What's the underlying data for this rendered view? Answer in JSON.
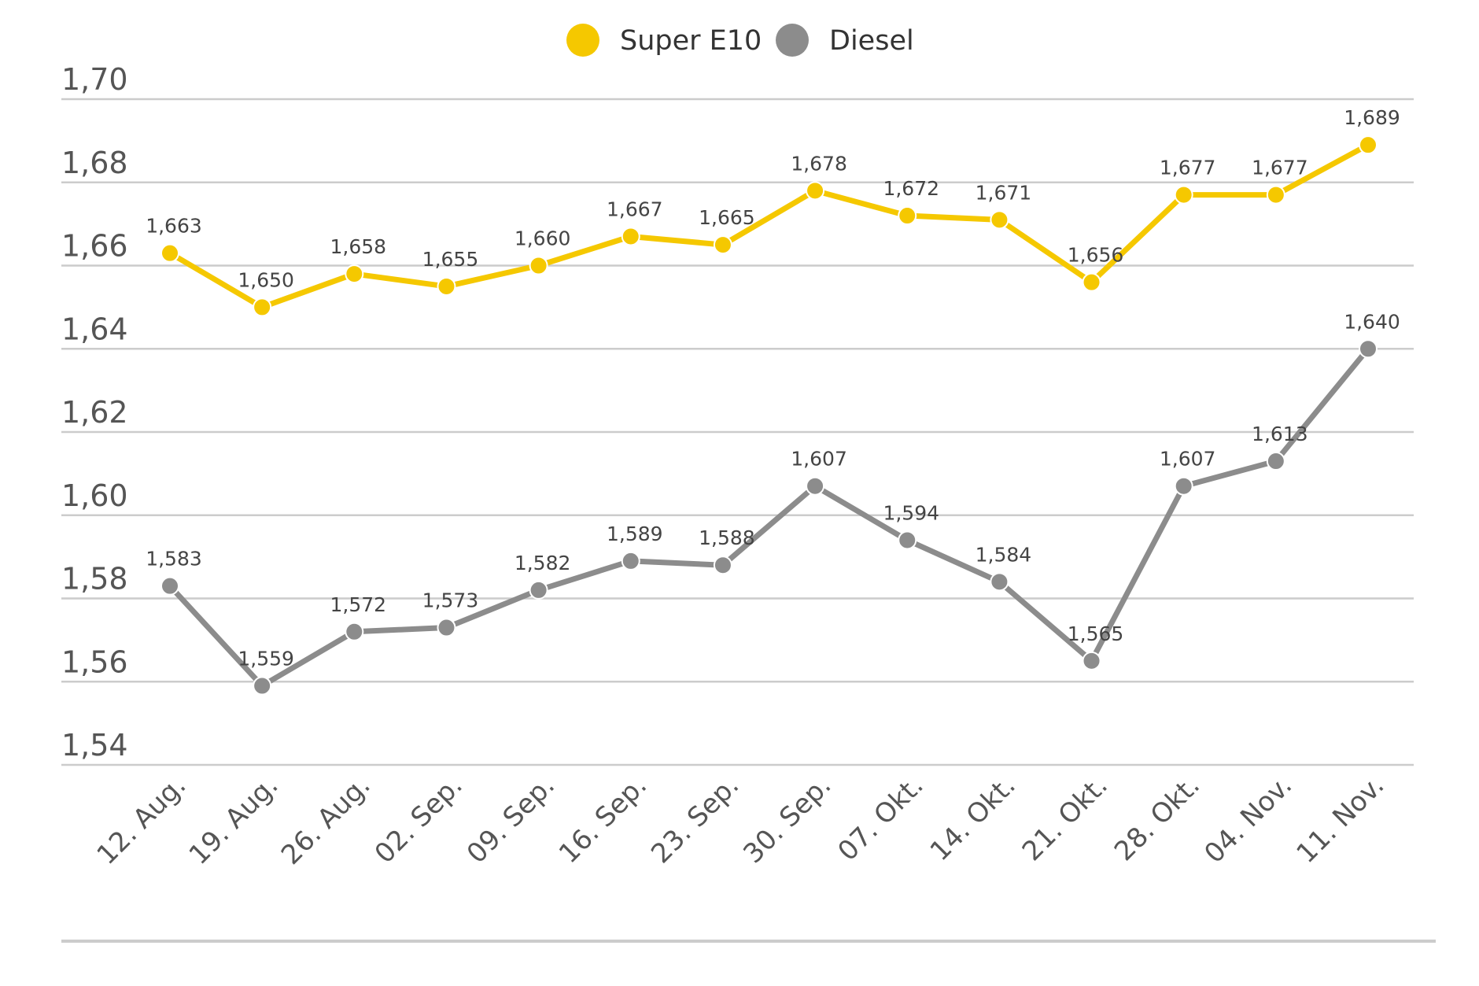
{
  "chart_data": {
    "type": "line",
    "categories": [
      "12. Aug.",
      "19. Aug.",
      "26. Aug.",
      "02. Sep.",
      "09. Sep.",
      "16. Sep.",
      "23. Sep.",
      "30. Sep.",
      "07. Okt.",
      "14. Okt.",
      "21. Okt.",
      "28. Okt.",
      "04. Nov.",
      "11. Nov."
    ],
    "series": [
      {
        "name": "Super E10",
        "color": "#f5c800",
        "values": [
          1.663,
          1.65,
          1.658,
          1.655,
          1.66,
          1.667,
          1.665,
          1.678,
          1.672,
          1.671,
          1.656,
          1.677,
          1.677,
          1.689
        ],
        "value_labels": [
          "1,663",
          "1,650",
          "1,658",
          "1,655",
          "1,660",
          "1,667",
          "1,665",
          "1,678",
          "1,672",
          "1,671",
          "1,656",
          "1,677",
          "1,677",
          "1,689"
        ]
      },
      {
        "name": "Diesel",
        "color": "#8c8c8c",
        "values": [
          1.583,
          1.559,
          1.572,
          1.573,
          1.582,
          1.589,
          1.588,
          1.607,
          1.594,
          1.584,
          1.565,
          1.607,
          1.613,
          1.64
        ],
        "value_labels": [
          "1,583",
          "1,559",
          "1,572",
          "1,573",
          "1,582",
          "1,589",
          "1,588",
          "1,607",
          "1,594",
          "1,584",
          "1,565",
          "1,607",
          "1,613",
          "1,640"
        ]
      }
    ],
    "ylim": [
      1.54,
      1.7
    ],
    "yticks": [
      {
        "value": 1.54,
        "label": "1,54"
      },
      {
        "value": 1.56,
        "label": "1,56"
      },
      {
        "value": 1.58,
        "label": "1,58"
      },
      {
        "value": 1.6,
        "label": "1,60"
      },
      {
        "value": 1.62,
        "label": "1,62"
      },
      {
        "value": 1.64,
        "label": "1,64"
      },
      {
        "value": 1.66,
        "label": "1,66"
      },
      {
        "value": 1.68,
        "label": "1,68"
      },
      {
        "value": 1.7,
        "label": "1,70"
      }
    ],
    "grid": true,
    "legend": "top"
  }
}
